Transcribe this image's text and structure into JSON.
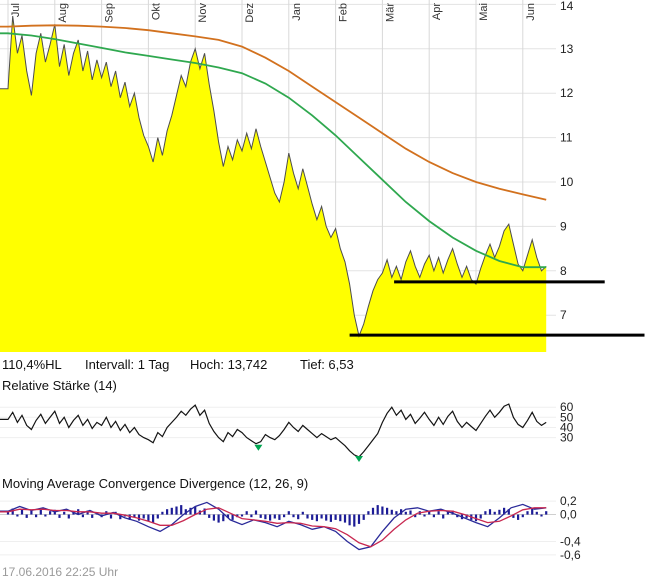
{
  "info_bar": {
    "hl": "110,4%HL",
    "interval": "Intervall: 1 Tag",
    "high": "Hoch: 13,742",
    "low": "Tief: 6,53"
  },
  "panels": {
    "rsi_title": "Relative Stärke (14)",
    "macd_title": "Moving Average Convergence Divergence (12, 26, 9)"
  },
  "footer": {
    "timestamp": "17.06.2016 22:25 Uhr"
  },
  "colors": {
    "grid": "#e3e3e3",
    "grid_month": "#d8d8d8",
    "grid_zero": "#cfcfcf",
    "price_fill": "#ffff00",
    "price_stroke": "#4d4d4d",
    "ma_long": "#d2711e",
    "ma_short": "#2fa84f",
    "support": "#000000",
    "rsi_line": "#141414",
    "rsi_marker": "#00a651",
    "macd_hist": "#1c1c96",
    "macd_line": "#2a2a99",
    "macd_signal": "#c82850"
  },
  "chart_data": [
    {
      "type": "area",
      "name": "price-panel",
      "categories": [
        "Jul",
        "Aug",
        "Sep",
        "Okt",
        "Nov",
        "Dez",
        "Jan",
        "Feb",
        "Mär",
        "Apr",
        "Mai",
        "Jun"
      ],
      "x_range": [
        0,
        11.5
      ],
      "ylim": [
        6.17,
        14.1
      ],
      "yticks": [
        {
          "v": 14,
          "label": "14"
        },
        {
          "v": 13,
          "label": "13"
        },
        {
          "v": 12,
          "label": "12"
        },
        {
          "v": 11,
          "label": "11"
        },
        {
          "v": 10,
          "label": "10"
        },
        {
          "v": 9,
          "label": "9"
        },
        {
          "v": 8,
          "label": "8"
        },
        {
          "v": 7,
          "label": "7"
        }
      ],
      "series": [
        {
          "name": "price",
          "type": "area",
          "fill": "#ffff00",
          "stroke": "#4d4d4d",
          "x_step": 0.1,
          "values": [
            12.1,
            13.74,
            12.9,
            13.3,
            12.5,
            11.95,
            12.9,
            13.35,
            12.7,
            13.1,
            13.55,
            12.6,
            13.1,
            12.4,
            12.9,
            13.2,
            12.5,
            12.95,
            12.3,
            12.75,
            12.35,
            12.7,
            12.15,
            12.5,
            11.9,
            12.25,
            11.7,
            12.0,
            11.45,
            11.05,
            10.8,
            10.45,
            11.0,
            10.6,
            11.15,
            11.5,
            11.95,
            12.4,
            12.15,
            12.7,
            13.0,
            12.55,
            12.9,
            12.2,
            11.6,
            10.9,
            10.35,
            10.8,
            10.5,
            10.95,
            10.7,
            11.1,
            10.75,
            11.2,
            10.8,
            10.45,
            10.1,
            9.75,
            9.55,
            10.0,
            10.65,
            10.2,
            9.85,
            10.3,
            9.9,
            9.5,
            9.15,
            9.45,
            9.0,
            8.75,
            8.95,
            8.5,
            8.2,
            7.7,
            7.0,
            6.53,
            6.8,
            7.2,
            7.55,
            7.8,
            7.95,
            8.25,
            7.85,
            8.1,
            7.8,
            8.2,
            8.45,
            8.1,
            7.85,
            8.15,
            8.35,
            8.0,
            8.3,
            7.95,
            8.25,
            8.5,
            8.15,
            7.85,
            8.1,
            7.8,
            7.7,
            8.05,
            8.35,
            8.6,
            8.3,
            8.55,
            8.9,
            9.05,
            8.6,
            8.15,
            8.0,
            8.35,
            8.7,
            8.3,
            8.0,
            8.1
          ]
        },
        {
          "name": "ma-long",
          "type": "line",
          "color": "#d2711e",
          "x_step": 0.5,
          "values": [
            13.5,
            13.52,
            13.53,
            13.52,
            13.5,
            13.47,
            13.42,
            13.35,
            13.28,
            13.2,
            13.05,
            12.8,
            12.5,
            12.15,
            11.8,
            11.45,
            11.1,
            10.75,
            10.45,
            10.2,
            10.0,
            9.85,
            9.72,
            9.6
          ]
        },
        {
          "name": "ma-short",
          "type": "line",
          "color": "#2fa84f",
          "x_step": 0.5,
          "values": [
            13.35,
            13.3,
            13.22,
            13.12,
            13.02,
            12.92,
            12.84,
            12.76,
            12.68,
            12.58,
            12.45,
            12.22,
            11.9,
            11.5,
            11.05,
            10.55,
            10.05,
            9.55,
            9.12,
            8.75,
            8.45,
            8.22,
            8.08,
            8.08
          ]
        }
      ],
      "annotations": [
        {
          "type": "hline",
          "y": 7.75,
          "x_from": 8.25,
          "x_to": 12.75,
          "color": "#000000",
          "width": 3
        },
        {
          "type": "hline",
          "y": 6.55,
          "x_from": 7.3,
          "x_to": 13.6,
          "color": "#000000",
          "width": 3
        }
      ]
    },
    {
      "type": "line",
      "name": "rsi-panel",
      "x_range": [
        0,
        11.5
      ],
      "ylim": [
        5,
        72
      ],
      "yticks": [
        {
          "v": 60,
          "label": "60"
        },
        {
          "v": 50,
          "label": "50"
        },
        {
          "v": 40,
          "label": "40"
        },
        {
          "v": 30,
          "label": "30"
        }
      ],
      "series": [
        {
          "name": "rsi",
          "type": "line",
          "color": "#141414",
          "x_step": 0.1,
          "values": [
            48,
            55,
            45,
            52,
            42,
            38,
            47,
            53,
            44,
            50,
            56,
            44,
            50,
            40,
            47,
            52,
            42,
            48,
            39,
            45,
            42,
            50,
            40,
            46,
            37,
            43,
            35,
            40,
            33,
            30,
            28,
            25,
            35,
            31,
            40,
            45,
            50,
            56,
            52,
            58,
            62,
            52,
            57,
            44,
            36,
            30,
            26,
            35,
            31,
            38,
            35,
            30,
            27,
            24,
            26,
            33,
            30,
            28,
            32,
            38,
            45,
            40,
            36,
            42,
            38,
            34,
            30,
            34,
            31,
            28,
            30,
            26,
            22,
            17,
            13,
            11,
            16,
            22,
            28,
            34,
            45,
            54,
            60,
            52,
            57,
            48,
            53,
            44,
            49,
            55,
            48,
            42,
            50,
            43,
            51,
            56,
            46,
            40,
            45,
            41,
            37,
            44,
            51,
            57,
            50,
            55,
            61,
            63,
            50,
            43,
            40,
            47,
            55,
            46,
            42,
            45
          ]
        }
      ],
      "markers": [
        {
          "x": 5.35,
          "v": 17,
          "symbol": "triangle-down",
          "color": "#00a651"
        },
        {
          "x": 7.5,
          "v": 6,
          "symbol": "triangle-down",
          "color": "#00a651"
        }
      ]
    },
    {
      "type": "bar",
      "name": "macd-panel",
      "x_range": [
        0,
        11.5
      ],
      "ylim": [
        -0.72,
        0.32
      ],
      "yticks": [
        {
          "v": 0.2,
          "label": "0,2"
        },
        {
          "v": 0,
          "label": "0,0"
        },
        {
          "v": -0.4,
          "label": "-0,4"
        },
        {
          "v": -0.6,
          "label": "-0,6"
        }
      ],
      "histogram": {
        "color": "#1c1c96",
        "x_step": 0.1,
        "values": [
          0.04,
          0.09,
          -0.03,
          0.07,
          -0.05,
          0.06,
          -0.04,
          0.08,
          -0.03,
          0.05,
          0.07,
          -0.05,
          0.04,
          -0.06,
          0.05,
          0.08,
          -0.04,
          0.06,
          -0.05,
          0.03,
          -0.04,
          0.05,
          -0.06,
          0.04,
          -0.07,
          -0.03,
          -0.08,
          -0.04,
          -0.09,
          -0.06,
          -0.1,
          -0.12,
          -0.06,
          0.04,
          0.08,
          0.1,
          0.12,
          0.14,
          0.08,
          0.1,
          0.12,
          0.06,
          0.09,
          -0.05,
          -0.09,
          -0.12,
          -0.1,
          -0.05,
          -0.08,
          -0.04,
          -0.03,
          0.05,
          -0.04,
          0.06,
          -0.05,
          -0.07,
          -0.09,
          -0.06,
          -0.08,
          -0.04,
          0.05,
          -0.04,
          -0.07,
          0.04,
          -0.06,
          -0.08,
          -0.1,
          -0.06,
          -0.09,
          -0.11,
          -0.08,
          -0.1,
          -0.12,
          -0.16,
          -0.18,
          -0.14,
          -0.08,
          0.05,
          0.1,
          0.14,
          0.12,
          0.1,
          0.07,
          0.05,
          0.08,
          0.04,
          0.06,
          -0.04,
          0.05,
          -0.03,
          0.06,
          -0.04,
          0.05,
          -0.06,
          0.04,
          0.06,
          -0.04,
          -0.07,
          -0.05,
          -0.08,
          -0.1,
          -0.06,
          0.05,
          0.08,
          0.04,
          0.07,
          0.1,
          0.08,
          -0.05,
          -0.08,
          -0.04,
          0.05,
          0.09,
          0.04,
          -0.03,
          0.05
        ]
      },
      "series": [
        {
          "name": "macd",
          "type": "line",
          "color": "#2a2a99",
          "x_step": 0.25,
          "values": [
            0.05,
            0.12,
            0.06,
            0.1,
            0.04,
            0.08,
            0.0,
            0.06,
            -0.02,
            0.03,
            -0.05,
            -0.1,
            -0.18,
            -0.25,
            -0.15,
            0.0,
            0.12,
            0.18,
            0.08,
            -0.08,
            -0.15,
            -0.08,
            -0.12,
            -0.18,
            -0.1,
            -0.15,
            -0.22,
            -0.18,
            -0.25,
            -0.4,
            -0.52,
            -0.48,
            -0.25,
            -0.05,
            0.08,
            0.1,
            0.05,
            0.08,
            0.02,
            -0.05,
            -0.12,
            -0.18,
            -0.05,
            0.1,
            0.15,
            0.08,
            0.1
          ]
        },
        {
          "name": "signal",
          "type": "line",
          "color": "#c82850",
          "x_step": 0.25,
          "values": [
            0.04,
            0.08,
            0.07,
            0.08,
            0.06,
            0.06,
            0.04,
            0.04,
            0.02,
            0.02,
            -0.01,
            -0.05,
            -0.1,
            -0.16,
            -0.16,
            -0.09,
            0.0,
            0.08,
            0.1,
            0.02,
            -0.06,
            -0.08,
            -0.1,
            -0.13,
            -0.12,
            -0.13,
            -0.17,
            -0.18,
            -0.21,
            -0.3,
            -0.42,
            -0.48,
            -0.38,
            -0.22,
            -0.08,
            0.02,
            0.05,
            0.06,
            0.05,
            0.0,
            -0.06,
            -0.12,
            -0.1,
            -0.02,
            0.07,
            0.1,
            0.1
          ]
        }
      ]
    }
  ]
}
